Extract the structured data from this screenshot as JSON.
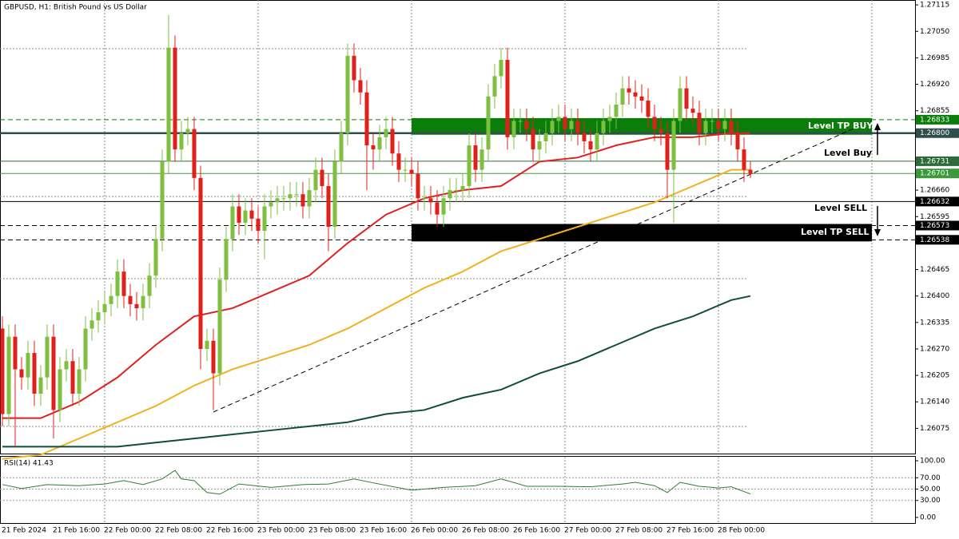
{
  "chart_data": {
    "type": "candlestick",
    "title": "GBPUSD, H1:  British Pound vs US Dollar",
    "categories": [
      "21 Feb 2024",
      null,
      null,
      null,
      null,
      null,
      null,
      null,
      "21 Feb 16:00",
      null,
      null,
      null,
      null,
      null,
      null,
      null,
      "22 Feb 00:00",
      null,
      null,
      null,
      null,
      null,
      null,
      null,
      "22 Feb 08:00",
      null,
      null,
      null,
      null,
      null,
      null,
      null,
      "22 Feb 16:00",
      null,
      null,
      null,
      null,
      null,
      null,
      null,
      "23 Feb 00:00",
      null,
      null,
      null,
      null,
      null,
      null,
      null,
      "23 Feb 08:00",
      null,
      null,
      null,
      null,
      null,
      null,
      null,
      "23 Feb 16:00",
      null,
      null,
      null,
      null,
      null,
      null,
      null,
      "26 Feb 00:00",
      null,
      null,
      null,
      null,
      null,
      null,
      null,
      "26 Feb 08:00",
      null,
      null,
      null,
      null,
      null,
      null,
      null,
      "26 Feb 16:00",
      null,
      null,
      null,
      null,
      null,
      null,
      null,
      "27 Feb 00:00",
      null,
      null,
      null,
      null,
      null,
      null,
      null,
      "27 Feb 08:00",
      null,
      null,
      null,
      null,
      null,
      null,
      null,
      "27 Feb 16:00",
      null,
      null,
      null,
      null,
      null,
      null,
      null,
      "28 Feb 00:00",
      null,
      null,
      null,
      null,
      null
    ],
    "open": [
      1.2632,
      1.2611,
      1.263,
      1.2622,
      1.262,
      1.2626,
      1.2616,
      1.262,
      1.263,
      1.2612,
      1.2622,
      1.2624,
      1.2616,
      1.2622,
      1.2632,
      1.2634,
      1.2636,
      1.2638,
      1.264,
      1.2646,
      1.264,
      1.2638,
      1.2637,
      1.264,
      1.2645,
      1.2654,
      1.2673,
      1.2701,
      1.2676,
      1.268,
      1.2681,
      1.2669,
      1.2627,
      1.2629,
      1.2621,
      1.2644,
      1.2654,
      1.2662,
      1.2658,
      1.2661,
      1.2659,
      1.2656,
      1.2662,
      1.2663,
      1.2664,
      1.2664,
      1.2665,
      1.2665,
      1.2662,
      1.2666,
      1.2671,
      1.2667,
      1.2657,
      1.2673,
      1.268,
      1.2699,
      1.2693,
      1.269,
      1.2677,
      1.2676,
      1.2679,
      1.2681,
      1.2675,
      1.2671,
      1.2671,
      1.267,
      1.2664,
      1.2664,
      1.2663,
      1.266,
      1.2664,
      1.2666,
      1.2666,
      1.2667,
      1.2677,
      1.2671,
      1.2676,
      1.2689,
      1.2694,
      1.2698,
      1.2679,
      1.2683,
      1.2683,
      1.2681,
      1.2676,
      1.2678,
      1.268,
      1.2683,
      1.2684,
      1.2681,
      1.2683,
      1.268,
      1.2678,
      1.2676,
      1.268,
      1.2683,
      1.2684,
      1.2687,
      1.2691,
      1.269,
      1.2689,
      1.2688,
      1.2684,
      1.2681,
      1.268,
      1.2671,
      1.2683,
      1.2691,
      1.2686,
      1.2685,
      1.268,
      1.2683,
      1.2683,
      1.2681,
      1.2683,
      1.268,
      1.2676,
      1.2671
    ],
    "high": [
      1.2635,
      1.2633,
      1.2633,
      1.2625,
      1.2629,
      1.2629,
      1.2623,
      1.2633,
      1.2633,
      1.2625,
      1.2627,
      1.2627,
      1.2625,
      1.2635,
      1.2637,
      1.2639,
      1.2641,
      1.2643,
      1.2649,
      1.2649,
      1.2643,
      1.2641,
      1.2643,
      1.2648,
      1.2657,
      1.2676,
      1.2709,
      1.2704,
      1.2683,
      1.2684,
      1.2684,
      1.2672,
      1.2632,
      1.2632,
      1.2647,
      1.2657,
      1.2665,
      1.2665,
      1.2664,
      1.2664,
      1.2662,
      1.2665,
      1.2666,
      1.2667,
      1.2667,
      1.2668,
      1.2668,
      1.2668,
      1.2669,
      1.2674,
      1.2674,
      1.267,
      1.2676,
      1.2683,
      1.2702,
      1.2702,
      1.2696,
      1.2693,
      1.268,
      1.2682,
      1.2684,
      1.2684,
      1.2678,
      1.2674,
      1.2674,
      1.2673,
      1.2667,
      1.2667,
      1.2666,
      1.2667,
      1.2669,
      1.2669,
      1.267,
      1.268,
      1.268,
      1.2679,
      1.2692,
      1.2697,
      1.2701,
      1.2701,
      1.2686,
      1.2686,
      1.2686,
      1.2684,
      1.2681,
      1.2683,
      1.2686,
      1.2687,
      1.2687,
      1.2686,
      1.2686,
      1.2683,
      1.2681,
      1.2683,
      1.2686,
      1.2687,
      1.269,
      1.2694,
      1.2694,
      1.2693,
      1.2692,
      1.2691,
      1.2687,
      1.2684,
      1.2683,
      1.2686,
      1.2694,
      1.2694,
      1.2689,
      1.2688,
      1.2686,
      1.2686,
      1.2686,
      1.2686,
      1.2686,
      1.2683,
      1.2679,
      1.2673
    ],
    "low": [
      1.2608,
      1.2608,
      1.2603,
      1.2617,
      1.2617,
      1.2613,
      1.2613,
      1.2617,
      1.2605,
      1.2609,
      1.2619,
      1.2613,
      1.2613,
      1.2619,
      1.2629,
      1.2631,
      1.2633,
      1.2635,
      1.2637,
      1.2637,
      1.2635,
      1.2634,
      1.2634,
      1.2637,
      1.2642,
      1.2651,
      1.267,
      1.2673,
      1.2673,
      1.2677,
      1.2666,
      1.2622,
      1.2624,
      1.2612,
      1.2618,
      1.2641,
      1.2651,
      1.2655,
      1.2655,
      1.2656,
      1.2653,
      1.2649,
      1.2659,
      1.266,
      1.2661,
      1.2661,
      1.2662,
      1.2659,
      1.2659,
      1.2663,
      1.2664,
      1.2651,
      1.2654,
      1.267,
      1.2677,
      1.269,
      1.2687,
      1.2666,
      1.2671,
      1.2673,
      1.2676,
      1.2672,
      1.2668,
      1.2668,
      1.2667,
      1.2661,
      1.2661,
      1.266,
      1.2657,
      1.2657,
      1.2661,
      1.2663,
      1.2663,
      1.2664,
      1.2668,
      1.2668,
      1.2673,
      1.2686,
      1.2691,
      1.2676,
      1.2676,
      1.268,
      1.2678,
      1.2673,
      1.2673,
      1.2675,
      1.2677,
      1.268,
      1.2678,
      1.2678,
      1.2677,
      1.2675,
      1.2673,
      1.2673,
      1.2677,
      1.268,
      1.2681,
      1.2684,
      1.2687,
      1.2686,
      1.2685,
      1.2681,
      1.2678,
      1.2677,
      1.2664,
      1.2658,
      1.268,
      1.2683,
      1.2682,
      1.2677,
      1.2677,
      1.268,
      1.2678,
      1.2678,
      1.2677,
      1.2673,
      1.2668,
      1.2669
    ],
    "close": [
      1.2611,
      1.263,
      1.2622,
      1.262,
      1.2626,
      1.2616,
      1.262,
      1.263,
      1.2612,
      1.2622,
      1.2624,
      1.2616,
      1.2622,
      1.2632,
      1.2634,
      1.2636,
      1.2638,
      1.264,
      1.2646,
      1.264,
      1.2638,
      1.2637,
      1.264,
      1.2645,
      1.2654,
      1.2673,
      1.2701,
      1.2676,
      1.268,
      1.2681,
      1.2669,
      1.2627,
      1.2629,
      1.2621,
      1.2644,
      1.2654,
      1.2662,
      1.2658,
      1.2661,
      1.2659,
      1.2656,
      1.2662,
      1.2663,
      1.2664,
      1.2664,
      1.2665,
      1.2665,
      1.2662,
      1.2666,
      1.2671,
      1.2667,
      1.2657,
      1.2673,
      1.268,
      1.2699,
      1.2693,
      1.269,
      1.2677,
      1.2676,
      1.2679,
      1.2681,
      1.2675,
      1.2671,
      1.2671,
      1.267,
      1.2664,
      1.2664,
      1.2663,
      1.266,
      1.2664,
      1.2666,
      1.2666,
      1.2667,
      1.2677,
      1.2671,
      1.2676,
      1.2689,
      1.2694,
      1.2698,
      1.2679,
      1.2683,
      1.2683,
      1.2681,
      1.2676,
      1.2678,
      1.268,
      1.2683,
      1.2684,
      1.2681,
      1.2683,
      1.268,
      1.2678,
      1.2676,
      1.268,
      1.2683,
      1.2684,
      1.2687,
      1.2691,
      1.269,
      1.2689,
      1.2688,
      1.2684,
      1.2681,
      1.268,
      1.2671,
      1.2683,
      1.2691,
      1.2686,
      1.2685,
      1.268,
      1.2683,
      1.2683,
      1.2681,
      1.2683,
      1.268,
      1.2676,
      1.2671,
      1.267
    ],
    "up_color": "#7fbf3f",
    "down_color": "#e0201b",
    "ylim": [
      1.26013,
      1.27127
    ],
    "yticks": [
      {
        "value": 1.27115,
        "label": "1.27115"
      },
      {
        "value": 1.2705,
        "label": "1.27050"
      },
      {
        "value": 1.26985,
        "label": "1.26985"
      },
      {
        "value": 1.2692,
        "label": "1.26920"
      },
      {
        "value": 1.26855,
        "label": "1.26855"
      },
      {
        "value": 1.2666,
        "label": "1.26660"
      },
      {
        "value": 1.26595,
        "label": "1.26595"
      },
      {
        "value": 1.26465,
        "label": "1.26465"
      },
      {
        "value": 1.264,
        "label": "1.26400"
      },
      {
        "value": 1.26335,
        "label": "1.26335"
      },
      {
        "value": 1.2627,
        "label": "1.26270"
      },
      {
        "value": 1.26205,
        "label": "1.26205"
      },
      {
        "value": 1.2614,
        "label": "1.26140"
      },
      {
        "value": 1.26075,
        "label": "1.26075"
      }
    ],
    "moving_averages": [
      {
        "color": "#e02020",
        "x": [
          0,
          6,
          12,
          18,
          24,
          30,
          36,
          42,
          48,
          54,
          60,
          66,
          72,
          78,
          84,
          90,
          96,
          102,
          108,
          114,
          117
        ],
        "values": [
          1.261,
          1.261,
          1.2614,
          1.262,
          1.2628,
          1.2635,
          1.2637,
          1.2641,
          1.2645,
          1.2653,
          1.266,
          1.2664,
          1.2666,
          1.2667,
          1.2673,
          1.2674,
          1.2677,
          1.2679,
          1.2679,
          1.268,
          1.268
        ]
      },
      {
        "color": "#f2b01e",
        "x": [
          0,
          6,
          12,
          18,
          24,
          30,
          36,
          42,
          48,
          54,
          60,
          66,
          72,
          78,
          84,
          90,
          96,
          102,
          108,
          114,
          117
        ],
        "values": [
          1.26,
          1.2601,
          1.2605,
          1.2609,
          1.2613,
          1.2618,
          1.2622,
          1.2625,
          1.2628,
          1.2632,
          1.2637,
          1.2642,
          1.2646,
          1.2651,
          1.2654,
          1.2657,
          1.266,
          1.2663,
          1.2667,
          1.2671,
          1.2671
        ]
      },
      {
        "color": "#0f4d3c",
        "x": [
          0,
          6,
          12,
          18,
          24,
          30,
          36,
          42,
          48,
          54,
          60,
          66,
          72,
          78,
          84,
          90,
          96,
          102,
          108,
          114,
          117
        ],
        "values": [
          1.2603,
          1.2603,
          1.2603,
          1.2603,
          1.2604,
          1.2605,
          1.2606,
          1.2607,
          1.2608,
          1.2609,
          1.2611,
          1.2612,
          1.2615,
          1.2617,
          1.2621,
          1.2624,
          1.2628,
          1.2632,
          1.2635,
          1.2639,
          1.264
        ]
      }
    ],
    "trendline": {
      "x": [
        33,
        136
      ],
      "y": [
        1.26115,
        1.26831
      ]
    },
    "levels": [
      {
        "value": 1.26833,
        "label": "1.26833",
        "color": "#0a7d0a",
        "style": "dashed"
      },
      {
        "value": 1.268,
        "label": "1.26800",
        "color": "#2f4f4f",
        "style": "thick"
      },
      {
        "value": 1.26731,
        "label": "1.26731",
        "color": "#2e6b3a",
        "style": "solid"
      },
      {
        "value": 1.26701,
        "label": "1.26701",
        "color": "#3a9a3a",
        "style": "solid"
      },
      {
        "value": 1.26632,
        "label": "1.26632",
        "color": "#000000",
        "style": "solid"
      },
      {
        "value": 1.26573,
        "label": "1.26573",
        "color": "#000000",
        "style": "dashed"
      },
      {
        "value": 1.26538,
        "label": "1.26538",
        "color": "#000000",
        "style": "dashed"
      }
    ],
    "zones": [
      {
        "from": 1.268,
        "to": 1.26833,
        "start": 64,
        "end": 136,
        "color": "#0a7d0a"
      },
      {
        "from": 1.26538,
        "to": 1.26573,
        "start": 64,
        "end": 136,
        "color": "#000000"
      }
    ],
    "annotations": [
      "Level TP BUY",
      "Level Buy",
      "Level SELL",
      "Level TP SELL"
    ],
    "rsi": {
      "title": "RSI(14) 41.43",
      "color": "#2e7d32",
      "ylim": [
        0,
        100
      ],
      "yticks": [
        {
          "value": 100,
          "label": "100.00"
        },
        {
          "value": 70,
          "label": "70.00"
        },
        {
          "value": 50,
          "label": "50.00"
        },
        {
          "value": 30,
          "label": "30.00"
        },
        {
          "value": 0,
          "label": "0.00"
        }
      ],
      "x": [
        0,
        3,
        7,
        12,
        16,
        19,
        22,
        25,
        27,
        28,
        30,
        32,
        34,
        37,
        42,
        47,
        51,
        55,
        58,
        64,
        69,
        74,
        78,
        82,
        87,
        92,
        97,
        99,
        102,
        104,
        106,
        109,
        112,
        114,
        117
      ],
      "values": [
        58,
        51,
        58,
        56,
        59,
        65,
        58,
        68,
        83,
        68,
        65,
        44,
        41,
        59,
        53,
        58,
        59,
        68,
        61,
        48,
        53,
        56,
        68,
        55,
        55,
        54,
        59,
        62,
        56,
        44,
        62,
        55,
        52,
        54,
        41.43
      ]
    }
  }
}
